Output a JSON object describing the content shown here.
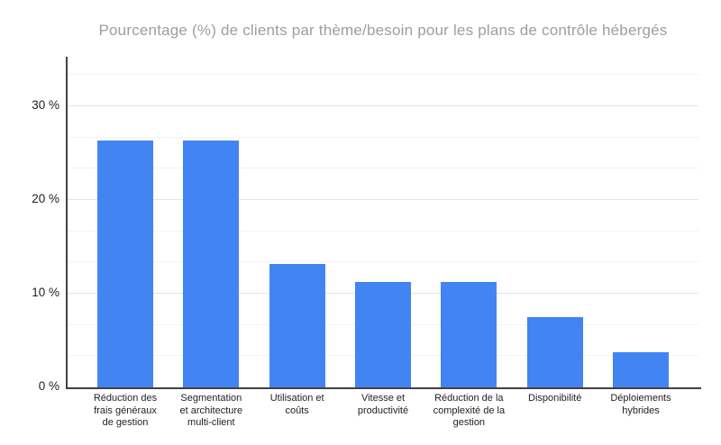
{
  "chart_title": "Pourcentage (%) de clients par thème/besoin pour les plans de contrôle hébergés",
  "colors": {
    "bar": "#4384f3",
    "title_text": "#9e9e9e",
    "axis_line": "#424242",
    "gridline_major": "#e4e4e4",
    "gridline_minor": "#f2f2f2",
    "tick_label": "#1f1f1f",
    "background": "#ffffff"
  },
  "y_axis": {
    "major_tick_values": [
      0,
      10,
      20,
      30
    ],
    "major_tick_labels": [
      "0 %",
      "10 %",
      "20 %",
      "30 %"
    ],
    "minor_step_percent": 3.3333,
    "max_percent": 35.3
  },
  "chart_data": {
    "type": "bar",
    "title": "Pourcentage (%) de clients par thème/besoin pour les plans de contrôle hébergés",
    "categories": [
      "Réduction des frais généraux de gestion",
      "Segmentation et architecture multi-client",
      "Utilisation et coûts",
      "Vitesse et productivité",
      "Réduction de la complexité de la gestion",
      "Disponibilité",
      "Déploiements hybrides"
    ],
    "category_lines": [
      [
        "Réduction des",
        "frais généraux",
        "de gestion"
      ],
      [
        "Segmentation",
        "et architecture",
        "multi-client"
      ],
      [
        "Utilisation et",
        "coûts"
      ],
      [
        "Vitesse et",
        "productivité"
      ],
      [
        "Réduction de la",
        "complexité de la",
        "gestion"
      ],
      [
        "Disponibilité"
      ],
      [
        "Déploiements",
        "hybrides"
      ]
    ],
    "values": [
      26.4,
      26.4,
      13.2,
      11.3,
      11.3,
      7.5,
      3.8
    ],
    "unit": "%",
    "xlabel": "",
    "ylabel": "",
    "ylim": [
      0,
      35.3
    ],
    "grid": "horizontal",
    "legend": false,
    "bar_color": "#4384f3"
  }
}
